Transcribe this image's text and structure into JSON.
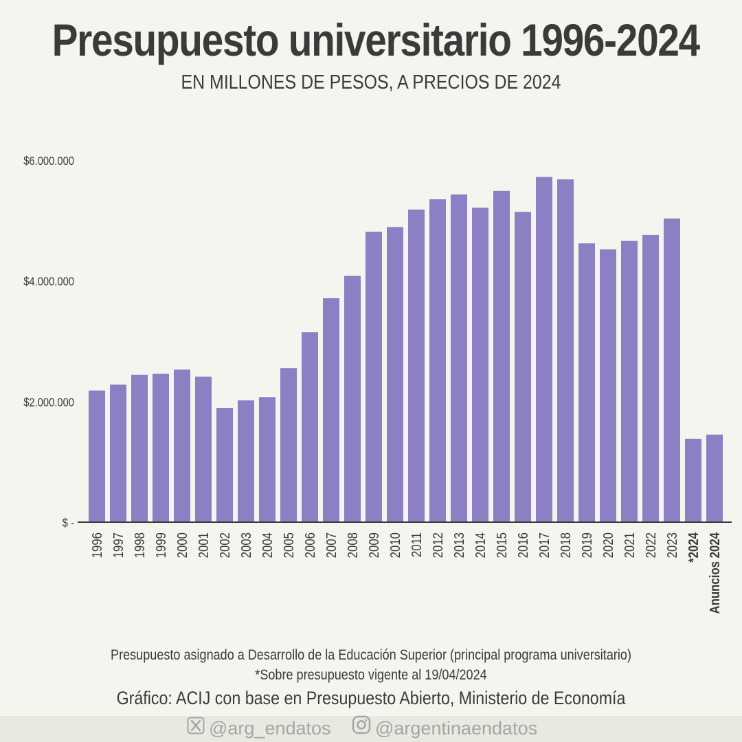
{
  "header": {
    "title": "Presupuesto universitario 1996-2024",
    "subtitle": "EN MILLONES DE PESOS, A PRECIOS DE 2024"
  },
  "chart_data": {
    "type": "bar",
    "categories": [
      "1996",
      "1997",
      "1998",
      "1999",
      "2000",
      "2001",
      "2002",
      "2003",
      "2004",
      "2005",
      "2006",
      "2007",
      "2008",
      "2009",
      "2010",
      "2011",
      "2012",
      "2013",
      "2014",
      "2015",
      "2016",
      "2017",
      "2018",
      "2019",
      "2020",
      "2021",
      "2022",
      "2023",
      "*2024",
      "Anuncios 2024"
    ],
    "bold_categories": [
      "*2024",
      "Anuncios 2024"
    ],
    "values": [
      2180000,
      2280000,
      2440000,
      2460000,
      2530000,
      2410000,
      1890000,
      2020000,
      2070000,
      2550000,
      3150000,
      3710000,
      4080000,
      4810000,
      4890000,
      5180000,
      5350000,
      5430000,
      5210000,
      5490000,
      5140000,
      5720000,
      5680000,
      4620000,
      4520000,
      4660000,
      4760000,
      5030000,
      1380000,
      1450000
    ],
    "ylim": [
      0,
      6000000
    ],
    "yticks": [
      0,
      2000000,
      4000000,
      6000000
    ],
    "ytick_labels": [
      "$ -",
      "$2.000.000",
      "$4.000.000",
      "$6.000.000"
    ],
    "bar_color": "#8c7fc3",
    "axis_color": "#3a3a3a",
    "grid": false,
    "legend": "none"
  },
  "footer": {
    "note1": "Presupuesto asignado a Desarrollo de la Educación Superior (principal programa universitario)",
    "note2": "*Sobre presupuesto vigente al 19/04/2024",
    "source": "Gráfico: ACIJ con base en Presupuesto Abierto, Ministerio de Economía"
  },
  "social": {
    "x_handle": "@arg_endatos",
    "x_icon": "x-logo-icon",
    "instagram_handle": "@argentinaendatos",
    "instagram_icon": "instagram-icon"
  }
}
